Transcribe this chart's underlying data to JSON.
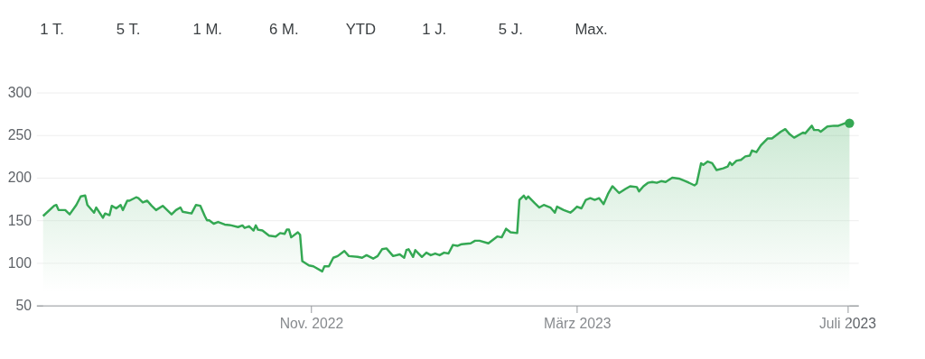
{
  "chart_data": {
    "type": "area",
    "color": "#34a853",
    "annotations": [
      "1 T.",
      "5 T.",
      "1 M.",
      "6 M.",
      "YTD",
      "1 J.",
      "5 J.",
      "Max."
    ],
    "x": [
      "2022-07-03",
      "2022-07-08",
      "2022-07-09",
      "2022-07-10",
      "2022-07-13",
      "2022-07-15",
      "2022-07-18",
      "2022-07-20",
      "2022-07-22",
      "2022-07-23",
      "2022-07-26",
      "2022-07-27",
      "2022-07-30",
      "2022-07-31",
      "2022-08-02",
      "2022-08-03",
      "2022-08-05",
      "2022-08-07",
      "2022-08-08",
      "2022-08-10",
      "2022-08-11",
      "2022-08-14",
      "2022-08-15",
      "2022-08-17",
      "2022-08-19",
      "2022-08-21",
      "2022-08-23",
      "2022-08-26",
      "2022-08-30",
      "2022-09-01",
      "2022-09-03",
      "2022-09-04",
      "2022-09-08",
      "2022-09-10",
      "2022-09-12",
      "2022-09-14",
      "2022-09-15",
      "2022-09-16",
      "2022-09-18",
      "2022-09-20",
      "2022-09-23",
      "2022-09-26",
      "2022-09-29",
      "2022-10-01",
      "2022-10-02",
      "2022-10-04",
      "2022-10-06",
      "2022-10-07",
      "2022-10-08",
      "2022-10-10",
      "2022-10-13",
      "2022-10-16",
      "2022-10-18",
      "2022-10-20",
      "2022-10-21",
      "2022-10-22",
      "2022-10-23",
      "2022-10-26",
      "2022-10-27",
      "2022-10-28",
      "2022-10-31",
      "2022-11-02",
      "2022-11-06",
      "2022-11-07",
      "2022-11-09",
      "2022-11-11",
      "2022-11-13",
      "2022-11-16",
      "2022-11-18",
      "2022-11-22",
      "2022-11-24",
      "2022-11-26",
      "2022-11-29",
      "2022-12-01",
      "2022-12-03",
      "2022-12-05",
      "2022-12-08",
      "2022-12-11",
      "2022-12-13",
      "2022-12-14",
      "2022-12-15",
      "2022-12-17",
      "2022-12-18",
      "2022-12-21",
      "2022-12-23",
      "2022-12-25",
      "2022-12-27",
      "2022-12-29",
      "2022-12-31",
      "2023-01-02",
      "2023-01-04",
      "2023-01-06",
      "2023-01-08",
      "2023-01-12",
      "2023-01-14",
      "2023-01-16",
      "2023-01-20",
      "2023-01-24",
      "2023-01-26",
      "2023-01-28",
      "2023-01-30",
      "2023-02-02",
      "2023-02-03",
      "2023-02-05",
      "2023-02-06",
      "2023-02-07",
      "2023-02-10",
      "2023-02-12",
      "2023-02-14",
      "2023-02-17",
      "2023-02-19",
      "2023-02-20",
      "2023-02-23",
      "2023-02-26",
      "2023-02-27",
      "2023-03-01",
      "2023-03-03",
      "2023-03-05",
      "2023-03-07",
      "2023-03-09",
      "2023-03-11",
      "2023-03-13",
      "2023-03-15",
      "2023-03-17",
      "2023-03-20",
      "2023-03-23",
      "2023-03-25",
      "2023-03-28",
      "2023-03-29",
      "2023-03-31",
      "2023-04-02",
      "2023-04-04",
      "2023-04-06",
      "2023-04-08",
      "2023-04-10",
      "2023-04-13",
      "2023-04-16",
      "2023-04-19",
      "2023-04-23",
      "2023-04-24",
      "2023-04-26",
      "2023-04-27",
      "2023-04-29",
      "2023-05-01",
      "2023-05-03",
      "2023-05-06",
      "2023-05-08",
      "2023-05-09",
      "2023-05-10",
      "2023-05-12",
      "2023-05-14",
      "2023-05-16",
      "2023-05-18",
      "2023-05-19",
      "2023-05-21",
      "2023-05-23",
      "2023-05-26",
      "2023-05-28",
      "2023-06-01",
      "2023-06-03",
      "2023-06-05",
      "2023-06-07",
      "2023-06-11",
      "2023-06-12",
      "2023-06-15",
      "2023-06-16",
      "2023-06-18",
      "2023-06-19",
      "2023-06-22",
      "2023-06-25",
      "2023-06-27",
      "2023-06-30",
      "2023-07-02"
    ],
    "values": [
      155,
      167,
      168,
      162,
      162,
      157,
      168,
      178,
      179,
      168,
      159,
      165,
      153,
      158,
      156,
      167,
      164,
      168,
      162,
      173,
      173,
      177,
      176,
      171,
      173,
      167,
      162,
      167,
      157,
      162,
      165,
      160,
      158,
      168,
      167,
      155,
      150,
      150,
      146,
      148,
      145,
      144,
      142,
      144,
      141,
      143,
      138,
      144,
      139,
      138,
      132,
      131,
      135,
      134,
      139,
      139,
      130,
      136,
      133,
      102,
      97,
      96,
      90,
      96,
      96,
      106,
      108,
      114,
      108,
      107,
      106,
      109,
      105,
      108,
      116,
      117,
      108,
      110,
      106,
      115,
      116,
      107,
      115,
      107,
      112,
      109,
      111,
      109,
      112,
      111,
      121,
      120,
      122,
      123,
      126,
      126,
      123,
      131,
      130,
      140,
      136,
      135,
      174,
      179,
      175,
      178,
      170,
      165,
      168,
      165,
      159,
      166,
      162,
      159,
      161,
      166,
      164,
      174,
      176,
      174,
      176,
      169,
      181,
      190,
      182,
      187,
      190,
      189,
      184,
      190,
      194,
      195,
      194,
      196,
      195,
      200,
      199,
      196,
      191,
      193,
      217,
      215,
      219,
      217,
      209,
      211,
      213,
      218,
      215,
      220,
      221,
      225,
      226,
      232,
      230,
      238,
      246,
      246,
      254,
      257,
      251,
      247,
      253,
      252,
      261,
      256,
      256,
      254,
      260,
      261,
      261,
      264,
      264
    ],
    "xlim": [
      "2022-06-30",
      "2023-07-06"
    ],
    "xticks": [
      {
        "value": "2022-11-01",
        "label": "Nov. 2022"
      },
      {
        "value": "2023-03-01",
        "label": "März 2023"
      },
      {
        "value": "2023-07-01",
        "label": "Juli 2023"
      }
    ],
    "ylim": [
      50,
      300
    ],
    "yticks": [
      50,
      100,
      150,
      200,
      250,
      300
    ],
    "grid": "y",
    "marker": "none",
    "line_style": "solid"
  }
}
